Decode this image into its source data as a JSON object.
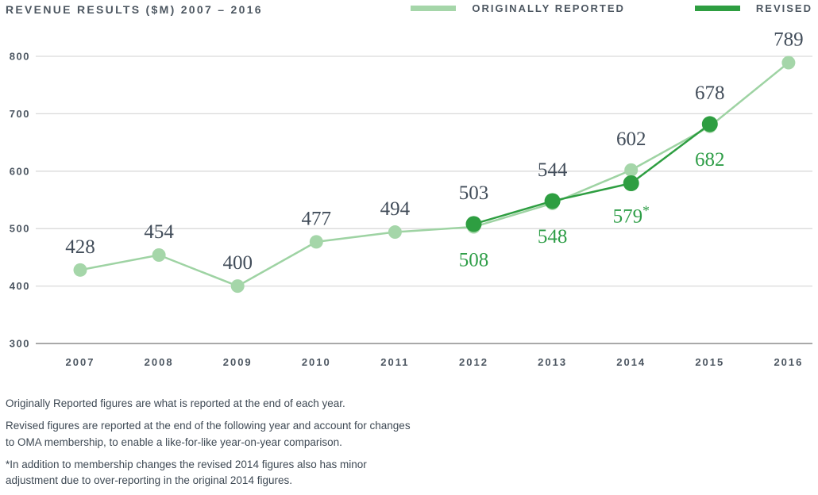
{
  "header": {
    "title": "REVENUE RESULTS ($M) 2007 – 2016",
    "legend": [
      {
        "label": "ORIGINALLY REPORTED",
        "color": "#a5d6a9"
      },
      {
        "label": "REVISED",
        "color": "#2e9e41"
      }
    ]
  },
  "chart_data": {
    "type": "line",
    "title": "REVENUE RESULTS ($M) 2007 – 2016",
    "x": [
      2007,
      2008,
      2009,
      2010,
      2011,
      2012,
      2013,
      2014,
      2015,
      2016
    ],
    "x_tick_labels": [
      "2007",
      "2008",
      "2009",
      "2010",
      "2011",
      "2012",
      "2013",
      "2014",
      "2015",
      "2016"
    ],
    "series": [
      {
        "name": "ORIGINALLY REPORTED",
        "color": "#a5d6a9",
        "line_color": "#9ed3a3",
        "values": [
          428,
          454,
          400,
          477,
          494,
          503,
          544,
          602,
          678,
          789
        ],
        "point_labels": [
          "428",
          "454",
          "400",
          "477",
          "494",
          "503",
          "544",
          "602",
          "678",
          "789"
        ],
        "label_color": "#424d5a"
      },
      {
        "name": "REVISED",
        "color": "#2e9e41",
        "line_color": "#2e9e41",
        "values": [
          null,
          null,
          null,
          null,
          null,
          508,
          548,
          579,
          682,
          null
        ],
        "point_labels": [
          null,
          null,
          null,
          null,
          null,
          "508",
          "548",
          "579*",
          "682",
          null
        ],
        "label_color": "#2f9e48"
      }
    ],
    "ylim": [
      300,
      800
    ],
    "yticks": [
      300,
      400,
      500,
      600,
      700,
      800
    ],
    "ytick_labels": [
      "300",
      "400",
      "500",
      "600",
      "700",
      "800"
    ],
    "xlabel": "",
    "ylabel": "",
    "grid": true,
    "gridline_color": "#d9d9d9",
    "baseline_color": "#a9a9a9",
    "axis_label_color": "#4c5661",
    "legend_position": "top-right"
  },
  "footnotes": [
    "Originally Reported figures are what is reported at the end of each year.",
    "Revised figures are reported at the end of the following year and account for changes\nto OMA membership, to enable a like-for-like year-on-year comparison.",
    "*In addition to membership changes the revised 2014 figures also has minor\nadjustment due to over-reporting in the original 2014 figures."
  ]
}
